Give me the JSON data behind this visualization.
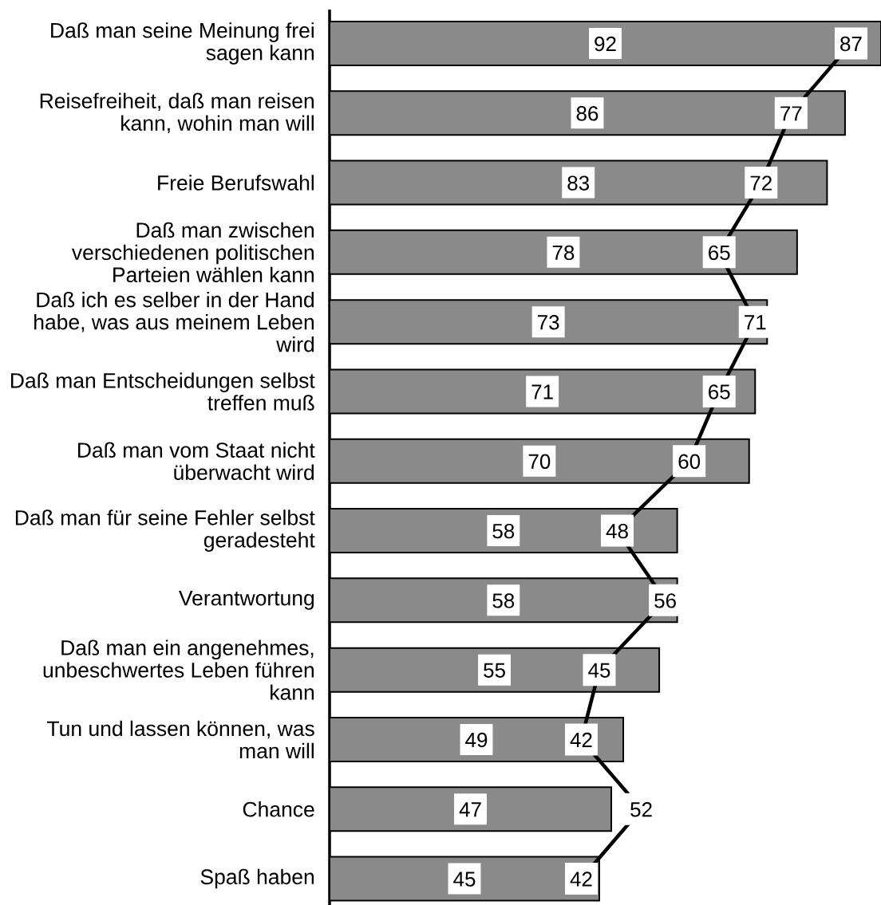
{
  "chart_data": {
    "type": "bar",
    "orientation": "horizontal",
    "categories": [
      "Daß man seine Meinung frei sagen kann",
      "Reisefreiheit, daß man reisen kann, wohin man will",
      "Freie Berufswahl",
      "Daß man zwischen verschiedenen politischen Parteien wählen kann",
      "Daß ich es selber in der Hand habe, was aus meinem Leben wird",
      "Daß man Entscheidungen selbst treffen muß",
      "Daß man vom Staat nicht überwacht wird",
      "Daß man für seine Fehler selbst geradesteht",
      "Verantwortung",
      "Daß man ein angenehmes, unbeschwertes Leben führen kann",
      "Tun und lassen können, was man will",
      "Chance",
      "Spaß haben"
    ],
    "series": [
      {
        "color": "#8a8a8a",
        "values": [
          92,
          86,
          83,
          78,
          73,
          71,
          70,
          58,
          58,
          55,
          49,
          47,
          45
        ]
      },
      {
        "type": "line",
        "color": "#000000",
        "values": [
          87,
          77,
          72,
          65,
          71,
          65,
          60,
          48,
          56,
          45,
          42,
          52,
          42
        ]
      }
    ],
    "xlim": [
      0,
      92
    ],
    "data_labels": true,
    "tick_labels": "y",
    "marker": "square"
  }
}
